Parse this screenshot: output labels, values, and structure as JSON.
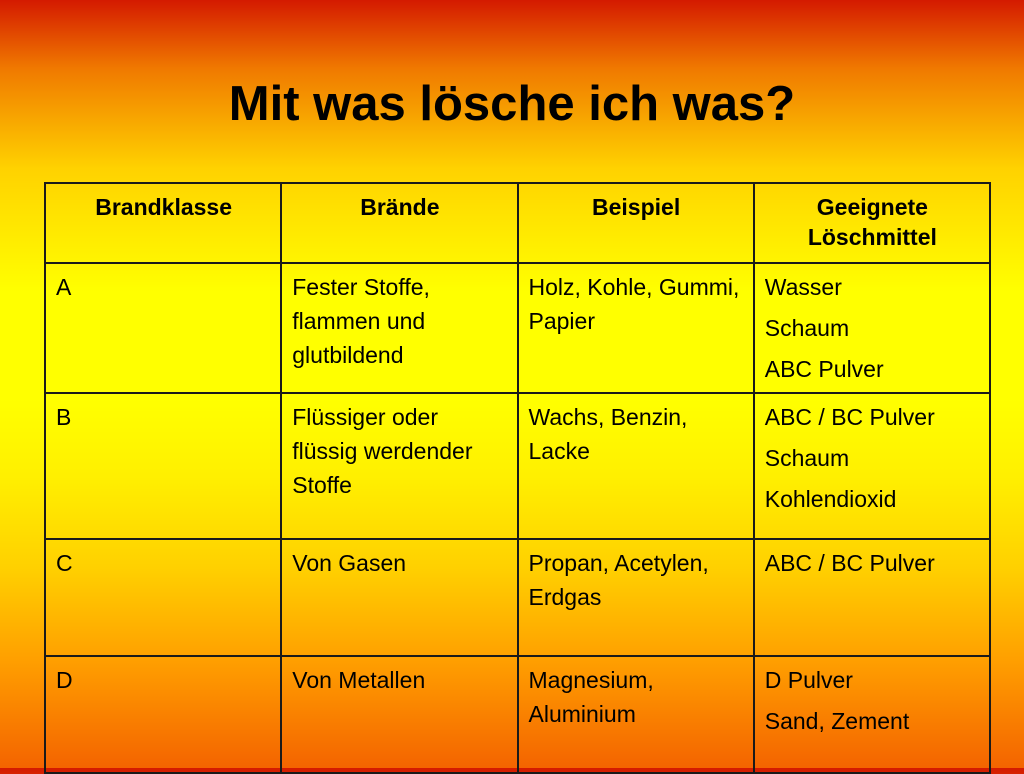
{
  "title": "Mit was lösche ich was?",
  "table": {
    "headers": [
      "Brandklasse",
      "Brände",
      "Beispiel",
      "Geeignete Löschmittel"
    ],
    "rows": [
      {
        "klasse": "A",
        "braende": "Fester Stoffe, flammen und glutbildend",
        "beispiel": "Holz, Kohle, Gummi, Papier",
        "loeschmittel": [
          "Wasser",
          "Schaum",
          "ABC Pulver"
        ]
      },
      {
        "klasse": "B",
        "braende": "Flüssiger oder flüssig werdender Stoffe",
        "beispiel": "Wachs, Benzin, Lacke",
        "loeschmittel": [
          "ABC / BC Pulver",
          "Schaum",
          "Kohlendioxid"
        ]
      },
      {
        "klasse": "C",
        "braende": "Von Gasen",
        "beispiel": "Propan, Acetylen, Erdgas",
        "loeschmittel": [
          "ABC / BC Pulver"
        ]
      },
      {
        "klasse": "D",
        "braende": "Von Metallen",
        "beispiel": "Magnesium, Aluminium",
        "loeschmittel": [
          "D Pulver",
          "Sand, Zement"
        ]
      }
    ]
  }
}
